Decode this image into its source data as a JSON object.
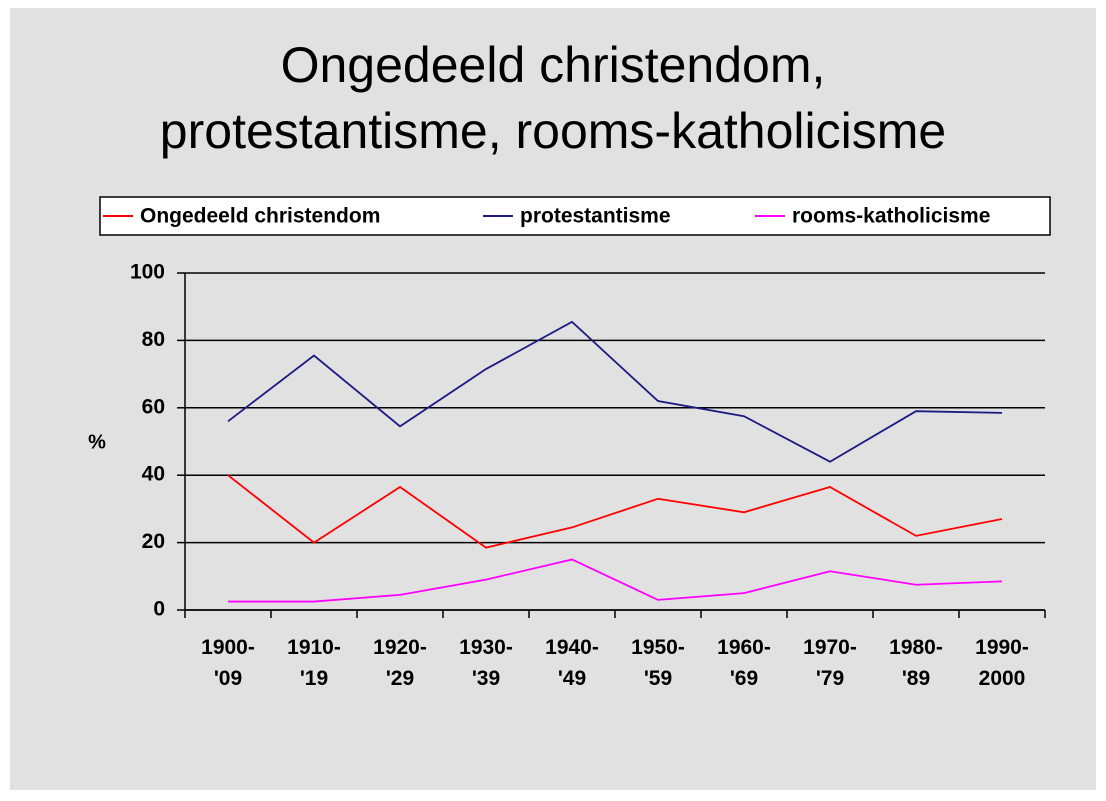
{
  "chart_data": {
    "type": "line",
    "title": "Ongedeeld christendom,\nprotestantisme, rooms-katholicisme",
    "y_label": "%",
    "categories": [
      "1900-\n'09",
      "1910-\n'19",
      "1920-\n'29",
      "1930-\n'39",
      "1940-\n'49",
      "1950-\n'59",
      "1960-\n'69",
      "1970-\n'79",
      "1980-\n'89",
      "1990-\n2000"
    ],
    "series": [
      {
        "name": "Ongedeeld christendom",
        "color": "#ff0000",
        "values": [
          40,
          20,
          36.5,
          18.5,
          24.5,
          33,
          29,
          36.5,
          22,
          27
        ]
      },
      {
        "name": "protestantisme",
        "color": "#1a1a80",
        "values": [
          56,
          75.5,
          54.5,
          71.5,
          85.5,
          62,
          57.5,
          44,
          59,
          58.5
        ]
      },
      {
        "name": "rooms-katholicisme",
        "color": "#ff00ff",
        "values": [
          2.5,
          2.5,
          4.5,
          9,
          15,
          3,
          5,
          11.5,
          7.5,
          8.5
        ]
      }
    ],
    "ylim": [
      0,
      100
    ],
    "yticks": [
      0,
      20,
      40,
      60,
      80,
      100
    ],
    "grid": true,
    "legend": "top"
  }
}
